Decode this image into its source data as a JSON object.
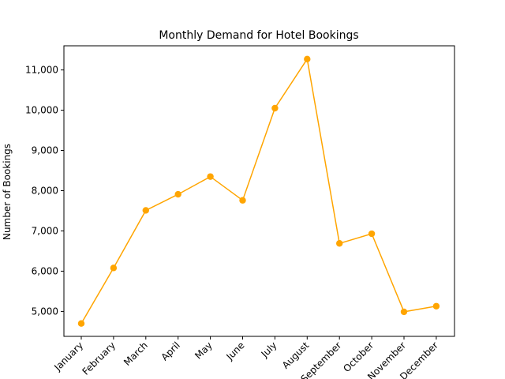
{
  "chart_data": {
    "type": "line",
    "title": "Monthly Demand for Hotel Bookings",
    "xlabel": "",
    "ylabel": "Number of Bookings",
    "categories": [
      "January",
      "February",
      "March",
      "April",
      "May",
      "June",
      "July",
      "August",
      "September",
      "October",
      "November",
      "December"
    ],
    "values": [
      4700,
      6080,
      7510,
      7910,
      8350,
      7760,
      10050,
      11270,
      6690,
      6930,
      4990,
      5130
    ],
    "ylim": [
      4380,
      11600
    ],
    "yticks": [
      5000,
      6000,
      7000,
      8000,
      9000,
      10000,
      11000
    ],
    "ytick_labels": [
      "5,000",
      "6,000",
      "7,000",
      "8,000",
      "9,000",
      "10,000",
      "11,000"
    ],
    "grid": false,
    "color": "#ffa500"
  }
}
